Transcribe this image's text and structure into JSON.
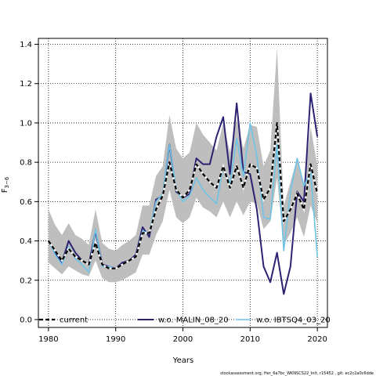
{
  "chart_data": {
    "type": "line",
    "title": "",
    "xlabel": "Years",
    "ylabel": "F",
    "ylabel_sub": "3−6",
    "xlim": [
      1978.5,
      2021.5
    ],
    "ylim": [
      -0.04,
      1.43
    ],
    "x_ticks": [
      1980,
      1990,
      2000,
      2010,
      2020
    ],
    "y_ticks": [
      0.0,
      0.2,
      0.4,
      0.6,
      0.8,
      1.0,
      1.2,
      1.4
    ],
    "x_tick_labels": [
      "1980",
      "1990",
      "2000",
      "2010",
      "2020"
    ],
    "y_tick_labels": [
      "0.0",
      "0.2",
      "0.4",
      "0.6",
      "0.8",
      "1.0",
      "1.2",
      "1.4"
    ],
    "grid": true,
    "legend_position": "bottom",
    "colors": {
      "band": "#bebebe",
      "current": "#000000",
      "malin": "#2b2272",
      "ibtsq4": "#6ec3e6"
    },
    "years": [
      1980,
      1981,
      1982,
      1983,
      1984,
      1985,
      1986,
      1987,
      1988,
      1989,
      1990,
      1991,
      1992,
      1993,
      1994,
      1995,
      1996,
      1997,
      1998,
      1999,
      2000,
      2001,
      2002,
      2003,
      2004,
      2005,
      2006,
      2007,
      2008,
      2009,
      2010,
      2011,
      2012,
      2013,
      2014,
      2015,
      2016,
      2017,
      2018,
      2019,
      2020
    ],
    "band_upper": [
      0.56,
      0.48,
      0.43,
      0.49,
      0.43,
      0.41,
      0.38,
      0.56,
      0.39,
      0.36,
      0.35,
      0.38,
      0.4,
      0.43,
      0.58,
      0.58,
      0.73,
      0.78,
      1.04,
      0.87,
      0.82,
      0.85,
      1.0,
      0.94,
      0.9,
      0.86,
      1.0,
      0.85,
      1.02,
      0.87,
      0.99,
      0.98,
      0.78,
      0.86,
      1.38,
      0.58,
      0.7,
      0.82,
      0.68,
      0.98,
      0.78
    ],
    "band_lower": [
      0.29,
      0.26,
      0.23,
      0.27,
      0.25,
      0.23,
      0.22,
      0.3,
      0.21,
      0.19,
      0.19,
      0.2,
      0.22,
      0.24,
      0.33,
      0.33,
      0.43,
      0.5,
      0.66,
      0.52,
      0.49,
      0.52,
      0.62,
      0.57,
      0.55,
      0.52,
      0.6,
      0.52,
      0.6,
      0.53,
      0.6,
      0.59,
      0.46,
      0.5,
      0.72,
      0.38,
      0.44,
      0.52,
      0.42,
      0.58,
      0.49
    ],
    "series": [
      {
        "name": "current",
        "values": [
          0.4,
          0.35,
          0.3,
          0.36,
          0.32,
          0.3,
          0.28,
          0.39,
          0.28,
          0.26,
          0.26,
          0.28,
          0.3,
          0.32,
          0.44,
          0.44,
          0.56,
          0.63,
          0.8,
          0.66,
          0.62,
          0.66,
          0.79,
          0.74,
          0.7,
          0.67,
          0.78,
          0.67,
          0.78,
          0.67,
          0.79,
          0.77,
          0.61,
          0.67,
          1.0,
          0.5,
          0.56,
          0.64,
          0.56,
          0.79,
          0.64
        ]
      },
      {
        "name": "w.o. MALIN_08_20",
        "values": [
          0.4,
          0.34,
          0.29,
          0.4,
          0.34,
          0.3,
          0.28,
          0.45,
          0.28,
          0.27,
          0.26,
          0.29,
          0.3,
          0.33,
          0.47,
          0.42,
          0.61,
          0.63,
          0.89,
          0.65,
          0.62,
          0.64,
          0.82,
          0.79,
          0.79,
          0.93,
          1.03,
          0.74,
          1.1,
          0.75,
          0.74,
          0.56,
          0.27,
          0.19,
          0.34,
          0.13,
          0.27,
          0.65,
          0.6,
          1.15,
          0.93
        ]
      },
      {
        "name": "w.o. IBTSQ4_03_20",
        "values": [
          0.4,
          0.33,
          0.28,
          0.37,
          0.31,
          0.28,
          0.24,
          0.46,
          0.27,
          0.27,
          0.26,
          0.28,
          0.3,
          0.32,
          0.45,
          0.44,
          0.6,
          0.64,
          0.89,
          0.66,
          0.6,
          0.63,
          0.72,
          0.66,
          0.62,
          0.59,
          0.78,
          0.69,
          0.92,
          0.73,
          1.0,
          0.83,
          0.52,
          0.51,
          0.89,
          0.35,
          0.65,
          0.82,
          0.68,
          0.75,
          0.32
        ]
      }
    ]
  },
  "footer": "stockassessment.org, Her_6a7bc_WKNSCS22_Init, r15452 , git: ec2c2a0c6dde"
}
